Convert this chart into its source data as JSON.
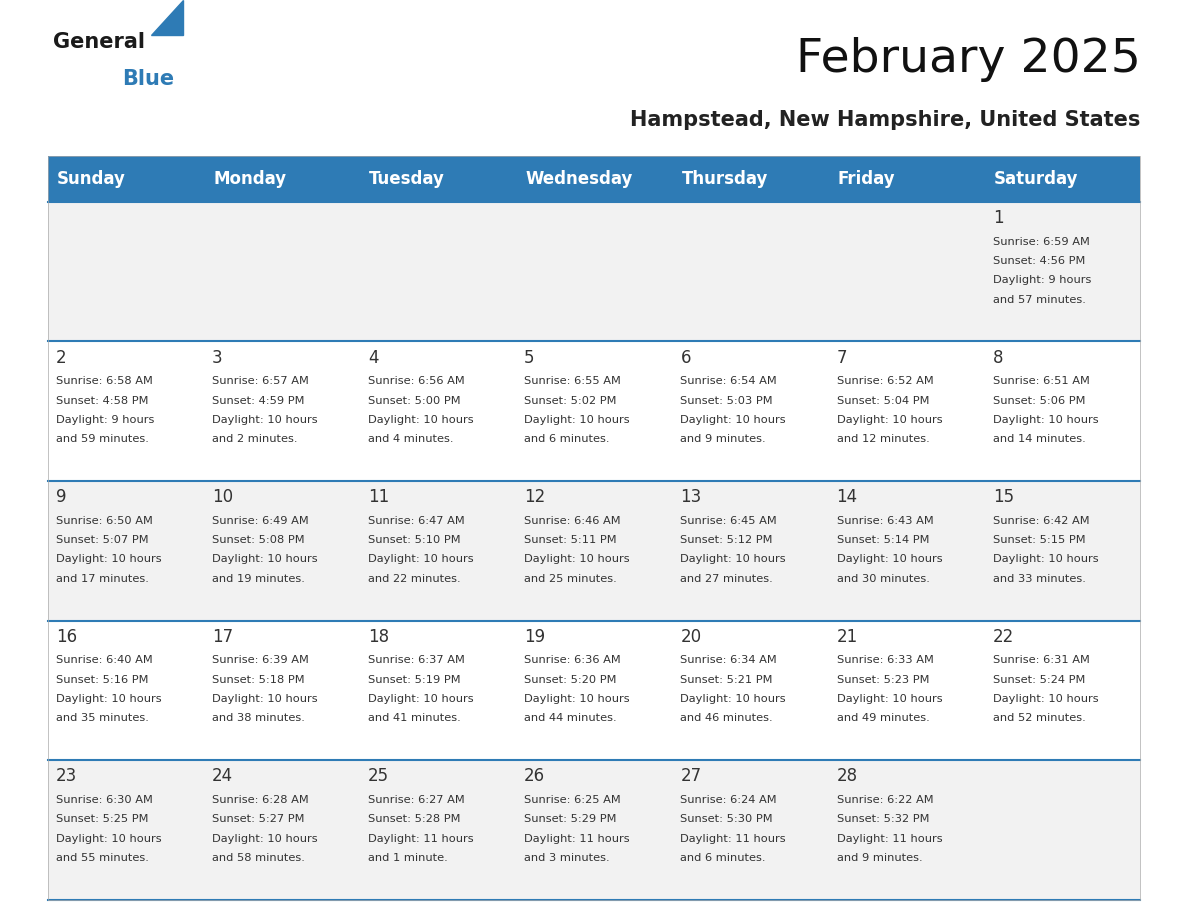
{
  "title": "February 2025",
  "subtitle": "Hampstead, New Hampshire, United States",
  "header_bg": "#2E7BB5",
  "header_text_color": "#FFFFFF",
  "day_names": [
    "Sunday",
    "Monday",
    "Tuesday",
    "Wednesday",
    "Thursday",
    "Friday",
    "Saturday"
  ],
  "cell_bg_odd": "#F2F2F2",
  "cell_bg_even": "#FFFFFF",
  "row_line_color": "#2E7BB5",
  "day_number_color": "#333333",
  "cell_text_color": "#333333",
  "days_data": [
    {
      "day": 1,
      "col": 6,
      "row": 0,
      "sunrise": "6:59 AM",
      "sunset": "4:56 PM",
      "daylight": "9 hours and 57 minutes."
    },
    {
      "day": 2,
      "col": 0,
      "row": 1,
      "sunrise": "6:58 AM",
      "sunset": "4:58 PM",
      "daylight": "9 hours and 59 minutes."
    },
    {
      "day": 3,
      "col": 1,
      "row": 1,
      "sunrise": "6:57 AM",
      "sunset": "4:59 PM",
      "daylight": "10 hours and 2 minutes."
    },
    {
      "day": 4,
      "col": 2,
      "row": 1,
      "sunrise": "6:56 AM",
      "sunset": "5:00 PM",
      "daylight": "10 hours and 4 minutes."
    },
    {
      "day": 5,
      "col": 3,
      "row": 1,
      "sunrise": "6:55 AM",
      "sunset": "5:02 PM",
      "daylight": "10 hours and 6 minutes."
    },
    {
      "day": 6,
      "col": 4,
      "row": 1,
      "sunrise": "6:54 AM",
      "sunset": "5:03 PM",
      "daylight": "10 hours and 9 minutes."
    },
    {
      "day": 7,
      "col": 5,
      "row": 1,
      "sunrise": "6:52 AM",
      "sunset": "5:04 PM",
      "daylight": "10 hours and 12 minutes."
    },
    {
      "day": 8,
      "col": 6,
      "row": 1,
      "sunrise": "6:51 AM",
      "sunset": "5:06 PM",
      "daylight": "10 hours and 14 minutes."
    },
    {
      "day": 9,
      "col": 0,
      "row": 2,
      "sunrise": "6:50 AM",
      "sunset": "5:07 PM",
      "daylight": "10 hours and 17 minutes."
    },
    {
      "day": 10,
      "col": 1,
      "row": 2,
      "sunrise": "6:49 AM",
      "sunset": "5:08 PM",
      "daylight": "10 hours and 19 minutes."
    },
    {
      "day": 11,
      "col": 2,
      "row": 2,
      "sunrise": "6:47 AM",
      "sunset": "5:10 PM",
      "daylight": "10 hours and 22 minutes."
    },
    {
      "day": 12,
      "col": 3,
      "row": 2,
      "sunrise": "6:46 AM",
      "sunset": "5:11 PM",
      "daylight": "10 hours and 25 minutes."
    },
    {
      "day": 13,
      "col": 4,
      "row": 2,
      "sunrise": "6:45 AM",
      "sunset": "5:12 PM",
      "daylight": "10 hours and 27 minutes."
    },
    {
      "day": 14,
      "col": 5,
      "row": 2,
      "sunrise": "6:43 AM",
      "sunset": "5:14 PM",
      "daylight": "10 hours and 30 minutes."
    },
    {
      "day": 15,
      "col": 6,
      "row": 2,
      "sunrise": "6:42 AM",
      "sunset": "5:15 PM",
      "daylight": "10 hours and 33 minutes."
    },
    {
      "day": 16,
      "col": 0,
      "row": 3,
      "sunrise": "6:40 AM",
      "sunset": "5:16 PM",
      "daylight": "10 hours and 35 minutes."
    },
    {
      "day": 17,
      "col": 1,
      "row": 3,
      "sunrise": "6:39 AM",
      "sunset": "5:18 PM",
      "daylight": "10 hours and 38 minutes."
    },
    {
      "day": 18,
      "col": 2,
      "row": 3,
      "sunrise": "6:37 AM",
      "sunset": "5:19 PM",
      "daylight": "10 hours and 41 minutes."
    },
    {
      "day": 19,
      "col": 3,
      "row": 3,
      "sunrise": "6:36 AM",
      "sunset": "5:20 PM",
      "daylight": "10 hours and 44 minutes."
    },
    {
      "day": 20,
      "col": 4,
      "row": 3,
      "sunrise": "6:34 AM",
      "sunset": "5:21 PM",
      "daylight": "10 hours and 46 minutes."
    },
    {
      "day": 21,
      "col": 5,
      "row": 3,
      "sunrise": "6:33 AM",
      "sunset": "5:23 PM",
      "daylight": "10 hours and 49 minutes."
    },
    {
      "day": 22,
      "col": 6,
      "row": 3,
      "sunrise": "6:31 AM",
      "sunset": "5:24 PM",
      "daylight": "10 hours and 52 minutes."
    },
    {
      "day": 23,
      "col": 0,
      "row": 4,
      "sunrise": "6:30 AM",
      "sunset": "5:25 PM",
      "daylight": "10 hours and 55 minutes."
    },
    {
      "day": 24,
      "col": 1,
      "row": 4,
      "sunrise": "6:28 AM",
      "sunset": "5:27 PM",
      "daylight": "10 hours and 58 minutes."
    },
    {
      "day": 25,
      "col": 2,
      "row": 4,
      "sunrise": "6:27 AM",
      "sunset": "5:28 PM",
      "daylight": "11 hours and 1 minute."
    },
    {
      "day": 26,
      "col": 3,
      "row": 4,
      "sunrise": "6:25 AM",
      "sunset": "5:29 PM",
      "daylight": "11 hours and 3 minutes."
    },
    {
      "day": 27,
      "col": 4,
      "row": 4,
      "sunrise": "6:24 AM",
      "sunset": "5:30 PM",
      "daylight": "11 hours and 6 minutes."
    },
    {
      "day": 28,
      "col": 5,
      "row": 4,
      "sunrise": "6:22 AM",
      "sunset": "5:32 PM",
      "daylight": "11 hours and 9 minutes."
    }
  ]
}
